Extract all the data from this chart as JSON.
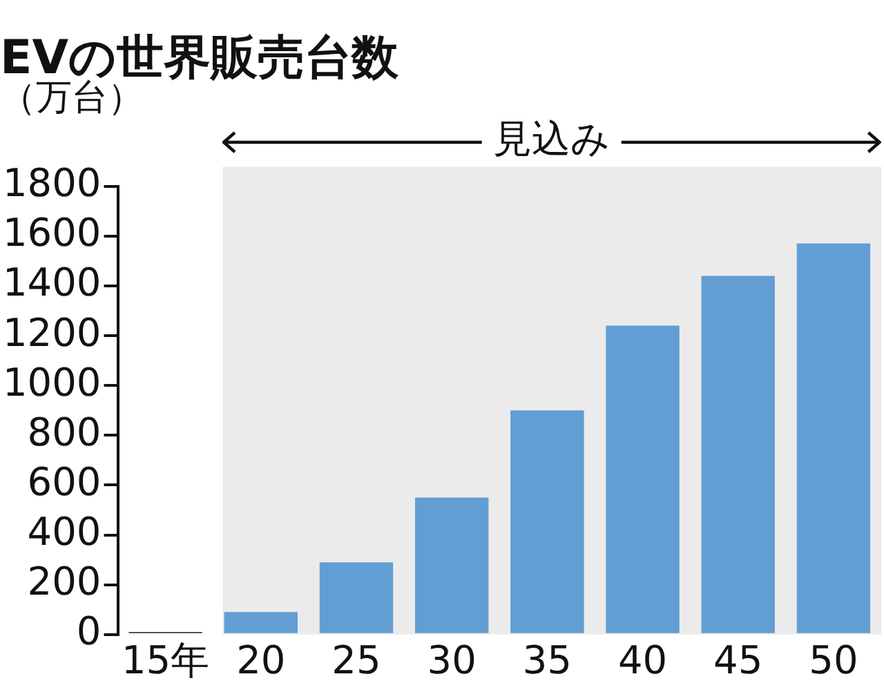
{
  "chart_data": {
    "type": "bar",
    "title": "EVの世界販売台数",
    "ylabel": "（万台）",
    "categories": [
      "15年",
      "20",
      "25",
      "30",
      "35",
      "40",
      "45",
      "50"
    ],
    "values": [
      10,
      90,
      290,
      550,
      900,
      1240,
      1440,
      1570
    ],
    "colors": [
      "#1a1a1a",
      "#629ed3",
      "#629ed3",
      "#629ed3",
      "#629ed3",
      "#629ed3",
      "#629ed3",
      "#629ed3"
    ],
    "ylim": [
      0,
      1800
    ],
    "yticks": [
      0,
      200,
      400,
      600,
      800,
      1000,
      1200,
      1400,
      1600,
      1800
    ],
    "bands": [
      {
        "axis": "x",
        "from": "20",
        "to": "50",
        "label": "見込み",
        "color": "#ebebeb"
      }
    ],
    "grid": false,
    "legend": false
  }
}
